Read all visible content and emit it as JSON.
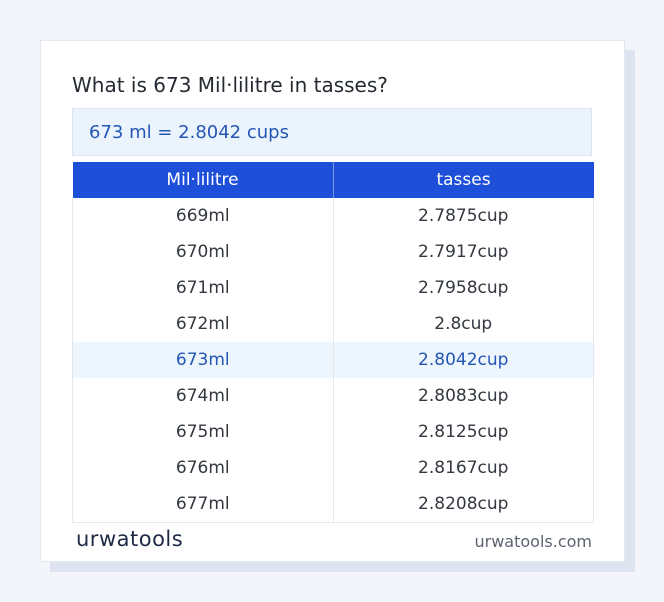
{
  "title": "What is 673 Mil·lilitre in tasses?",
  "result": "673 ml = 2.8042 cups",
  "table": {
    "headers": [
      "Mil·lilitre",
      "tasses"
    ],
    "rows": [
      [
        "669ml",
        "2.7875cup"
      ],
      [
        "670ml",
        "2.7917cup"
      ],
      [
        "671ml",
        "2.7958cup"
      ],
      [
        "672ml",
        "2.8cup"
      ],
      [
        "673ml",
        "2.8042cup"
      ],
      [
        "674ml",
        "2.8083cup"
      ],
      [
        "675ml",
        "2.8125cup"
      ],
      [
        "676ml",
        "2.8167cup"
      ],
      [
        "677ml",
        "2.8208cup"
      ]
    ]
  },
  "footer": {
    "logo": "urwatools",
    "site": "urwatools.com"
  }
}
